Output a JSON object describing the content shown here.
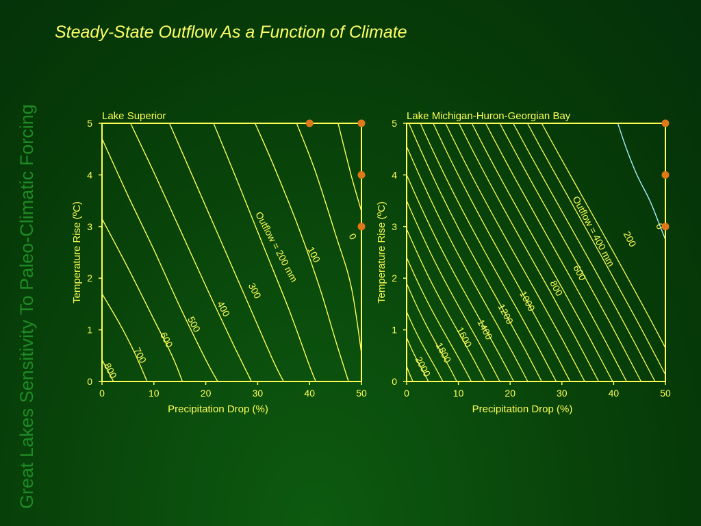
{
  "side_title": "Great Lakes Sensitivity To Paleo-Climatic Forcing",
  "main_title": "Steady-State Outflow As a Function of Climate",
  "colors": {
    "background": "#0a4a0c",
    "axis": "#ffff55",
    "contour": "#ffff55",
    "zero_contour_right": "#a8f0ff",
    "marker": "#e07818",
    "side_title": "#1f8a25"
  },
  "chart_data": [
    {
      "type": "contour",
      "title": "Lake Superior",
      "xlabel": "Precipitation Drop (%)",
      "ylabel": "Temperature Rise (ºC)",
      "xlim": [
        0,
        50
      ],
      "ylim": [
        0,
        5
      ],
      "xticks": [
        0,
        10,
        20,
        30,
        40,
        50
      ],
      "yticks": [
        0,
        1,
        2,
        3,
        4,
        5
      ],
      "grid": false,
      "contours": [
        {
          "level": 800,
          "label": "800",
          "points": [
            [
              0,
              0.42
            ],
            [
              2.2,
              0
            ]
          ]
        },
        {
          "level": 700,
          "label": "700",
          "points": [
            [
              0,
              1.7
            ],
            [
              3.5,
              1.1
            ],
            [
              6.3,
              0.55
            ],
            [
              8.7,
              0
            ]
          ]
        },
        {
          "level": 600,
          "label": "600",
          "points": [
            [
              0,
              3.15
            ],
            [
              5,
              2.2
            ],
            [
              10,
              1.2
            ],
            [
              13.5,
              0.5
            ],
            [
              15.5,
              0
            ]
          ]
        },
        {
          "level": null,
          "label": "",
          "points": [
            [
              0,
              4.7
            ],
            [
              5,
              3.6
            ],
            [
              10,
              2.55
            ],
            [
              15,
              1.45
            ],
            [
              20,
              0.42
            ],
            [
              22.3,
              0
            ]
          ]
        },
        {
          "level": 500,
          "label": "500",
          "points": [
            [
              5.5,
              5
            ],
            [
              10,
              4.05
            ],
            [
              15,
              2.95
            ],
            [
              20,
              1.85
            ],
            [
              25,
              0.78
            ],
            [
              28.8,
              0
            ]
          ]
        },
        {
          "level": 400,
          "label": "400",
          "points": [
            [
              13,
              5
            ],
            [
              18,
              3.85
            ],
            [
              23,
              2.7
            ],
            [
              28,
              1.55
            ],
            [
              33,
              0.4
            ],
            [
              35,
              0
            ]
          ]
        },
        {
          "level": 300,
          "label": "300",
          "points": [
            [
              21.5,
              5
            ],
            [
              26,
              3.9
            ],
            [
              31,
              2.65
            ],
            [
              36,
              1.4
            ],
            [
              40,
              0.3
            ],
            [
              41.2,
              0
            ]
          ]
        },
        {
          "level": 200,
          "label": "Outflow = 200 mm",
          "points": [
            [
              29.5,
              5
            ],
            [
              33,
              4.2
            ],
            [
              38,
              2.95
            ],
            [
              42,
              1.8
            ],
            [
              45,
              0.8
            ],
            [
              47.5,
              0
            ]
          ]
        },
        {
          "level": 100,
          "label": "100",
          "points": [
            [
              37.5,
              5
            ],
            [
              41,
              4.1
            ],
            [
              45,
              2.85
            ],
            [
              48,
              1.85
            ],
            [
              50,
              0.55
            ]
          ]
        },
        {
          "level": 0,
          "label": "0",
          "points": [
            [
              45.5,
              5
            ],
            [
              48,
              4.0
            ],
            [
              50,
              3.3
            ]
          ]
        }
      ],
      "contour_labels": [
        {
          "text": "800",
          "x": 1.5,
          "y": 0.2
        },
        {
          "text": "700",
          "x": 7.2,
          "y": 0.5
        },
        {
          "text": "600",
          "x": 12.3,
          "y": 0.8
        },
        {
          "text": "500",
          "x": 17.6,
          "y": 1.1
        },
        {
          "text": "400",
          "x": 23.3,
          "y": 1.4
        },
        {
          "text": "300",
          "x": 29.3,
          "y": 1.75
        },
        {
          "text": "Outflow = 200 mm",
          "x": 33.5,
          "y": 2.6
        },
        {
          "text": "100",
          "x": 40.7,
          "y": 2.45
        },
        {
          "text": "0",
          "x": 48.2,
          "y": 2.8
        }
      ],
      "markers": [
        {
          "x": 40,
          "y": 5
        },
        {
          "x": 50,
          "y": 5
        },
        {
          "x": 50,
          "y": 4
        },
        {
          "x": 50,
          "y": 3
        }
      ]
    },
    {
      "type": "contour",
      "title": "Lake Michigan-Huron-Georgian Bay",
      "xlabel": "Precipitation Drop (%)",
      "ylabel": "Temperature Rise (ºC)",
      "xlim": [
        0,
        50
      ],
      "ylim": [
        0,
        5
      ],
      "xticks": [
        0,
        10,
        20,
        30,
        40,
        50
      ],
      "yticks": [
        0,
        1,
        2,
        3,
        4,
        5
      ],
      "grid": false,
      "contour_intercepts": [
        {
          "level": 2000,
          "y0": 0.3,
          "x0": 1.2
        },
        {
          "level": 1900,
          "y0": 0.85,
          "x0": 4.2
        },
        {
          "level": 1800,
          "y0": 1.35,
          "x0": 7.0
        },
        {
          "level": 1700,
          "y0": 1.9,
          "x0": 9.7
        },
        {
          "level": 1600,
          "y0": 2.4,
          "x0": 12.5
        },
        {
          "level": 1500,
          "y0": 2.95,
          "x0": 15.2
        },
        {
          "level": 1400,
          "y0": 3.5,
          "x0": 18.0
        },
        {
          "level": 1300,
          "y0": 4.0,
          "x0": 20.7
        },
        {
          "level": 1200,
          "y0": 4.55,
          "x0": 23.4
        },
        {
          "level": 1100,
          "y0": 5.1,
          "x0": 26.1
        },
        {
          "level": 1000,
          "y0": 5.6,
          "x0": 28.9
        },
        {
          "level": 900,
          "y0": 6.15,
          "x0": 31.6
        },
        {
          "level": 800,
          "y0": 6.65,
          "x0": 34.4
        },
        {
          "level": 700,
          "y0": 7.2,
          "x0": 37.1
        },
        {
          "level": 600,
          "y0": 7.7,
          "x0": 39.8
        },
        {
          "level": 500,
          "y0": 8.25,
          "x0": 42.5
        },
        {
          "level": 400,
          "y0": 8.8,
          "x0": 45.3
        },
        {
          "level": 300,
          "y0": 9.3,
          "x0": 48.0
        },
        {
          "level": 200,
          "y0": 9.85,
          "x0": 50.7
        },
        {
          "level": 100,
          "y0": 10.4,
          "x0": 53.4
        }
      ],
      "zero_contour": [
        [
          40.8,
          5
        ],
        [
          42.5,
          4.5
        ],
        [
          44.5,
          4.0
        ],
        [
          47,
          3.5
        ],
        [
          49,
          3.0
        ],
        [
          50,
          2.75
        ]
      ],
      "contour_labels": [
        {
          "text": "2000",
          "x": 3.0,
          "y": 0.28
        },
        {
          "text": "1800",
          "x": 7.0,
          "y": 0.55
        },
        {
          "text": "1600",
          "x": 11.0,
          "y": 0.85
        },
        {
          "text": "1400",
          "x": 15.0,
          "y": 1.0
        },
        {
          "text": "1200",
          "x": 19.0,
          "y": 1.3
        },
        {
          "text": "1000",
          "x": 23.2,
          "y": 1.55
        },
        {
          "text": "800",
          "x": 28.8,
          "y": 1.8
        },
        {
          "text": "600",
          "x": 33.3,
          "y": 2.1
        },
        {
          "text": "Outflow = 400 mm",
          "x": 36.0,
          "y": 2.9
        },
        {
          "text": "200",
          "x": 43.0,
          "y": 2.75
        },
        {
          "text": "0",
          "x": 48.8,
          "y": 3.0
        }
      ],
      "markers": [
        {
          "x": 50,
          "y": 5
        },
        {
          "x": 50,
          "y": 4
        },
        {
          "x": 50,
          "y": 3
        }
      ]
    }
  ]
}
